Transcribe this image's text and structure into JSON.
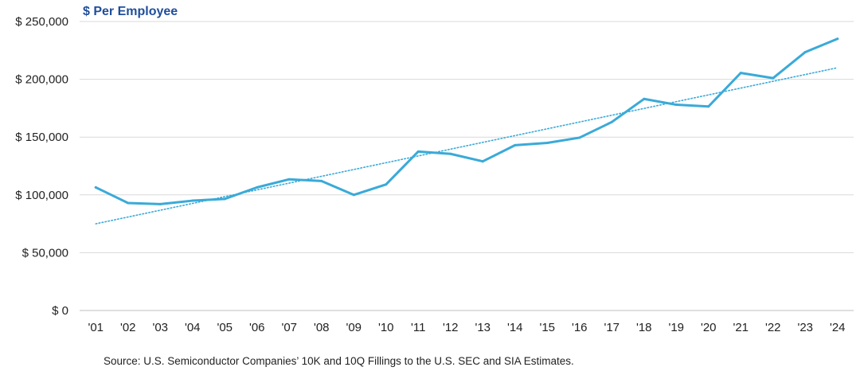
{
  "chart_data": {
    "type": "line",
    "title": "$ Per Employee",
    "categories": [
      "'01",
      "'02",
      "'03",
      "'04",
      "'05",
      "'06",
      "'07",
      "'08",
      "'09",
      "'10",
      "'11",
      "'12",
      "'13",
      "'14",
      "'15",
      "'16",
      "'17",
      "'18",
      "'19",
      "'20",
      "'21",
      "'22",
      "'23",
      "'24"
    ],
    "series": [
      {
        "name": "$ Per Employee",
        "color": "#3aaad8",
        "values": [
          106500,
          93000,
          92000,
          95000,
          96500,
          106500,
          113500,
          112000,
          100000,
          109000,
          137500,
          135500,
          129000,
          143000,
          145000,
          149500,
          163000,
          183000,
          178000,
          176500,
          205500,
          201000,
          223500,
          235000
        ]
      },
      {
        "name": "Trend",
        "style": "dotted",
        "color": "#3aaad8",
        "values_linear_endpoints": [
          75000,
          210000
        ]
      }
    ],
    "y_ticks": [
      0,
      50000,
      100000,
      150000,
      200000,
      250000
    ],
    "y_tick_labels": [
      "$ 0",
      "$ 50,000",
      "$ 100,000",
      "$ 150,000",
      "$ 200,000",
      "$ 250,000"
    ],
    "ylim": [
      0,
      250000
    ],
    "grid": true,
    "xlabel": "",
    "ylabel": ""
  },
  "source": "Source: U.S. Semiconductor Companies’ 10K and 10Q Fillings to the U.S. SEC and SIA Estimates.",
  "colors": {
    "title": "#1f4e9c",
    "line": "#3aaad8",
    "grid": "#d9d9d9"
  }
}
